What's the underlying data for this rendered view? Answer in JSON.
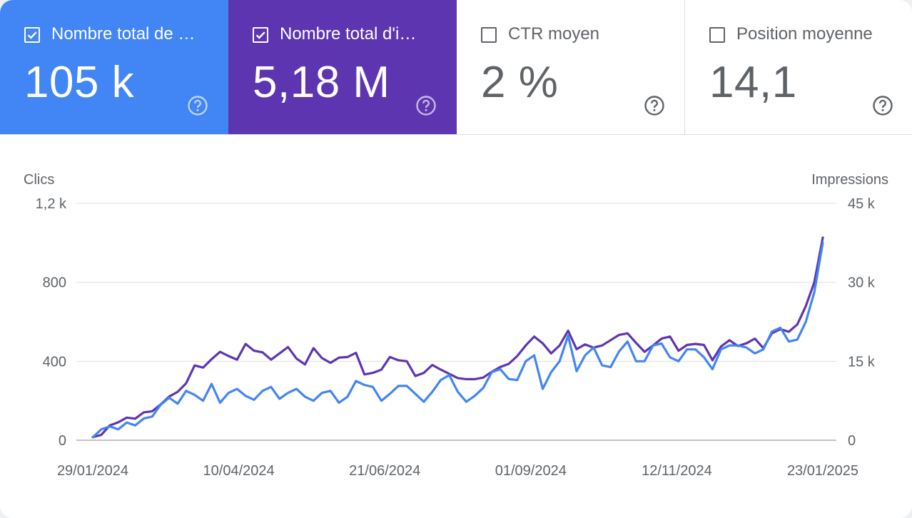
{
  "colors": {
    "clicks": "#4285f4",
    "impressions": "#5e35b1",
    "tile_clicks_bg": "#4285f4",
    "tile_impressions_bg": "#5e35b1"
  },
  "metrics": [
    {
      "label": "Nombre total de …",
      "value": "105 k",
      "checked": true,
      "icon": "help-circle-icon"
    },
    {
      "label": "Nombre total d'i…",
      "value": "5,18 M",
      "checked": true,
      "icon": "help-circle-icon"
    },
    {
      "label": "CTR moyen",
      "value": "2 %",
      "checked": false,
      "icon": "help-circle-icon"
    },
    {
      "label": "Position moyenne",
      "value": "14,1",
      "checked": false,
      "icon": "help-circle-icon"
    }
  ],
  "chart_data": {
    "type": "line",
    "left_axis": {
      "title": "Clics",
      "ticks": [
        "0",
        "400",
        "800",
        "1,2 k"
      ],
      "range": [
        0,
        1200
      ]
    },
    "right_axis": {
      "title": "Impressions",
      "ticks": [
        "0",
        "15 k",
        "30 k",
        "45 k"
      ],
      "range": [
        0,
        45000
      ]
    },
    "x_ticks": [
      "29/01/2024",
      "10/04/2024",
      "21/06/2024",
      "01/09/2024",
      "12/11/2024",
      "23/01/2025"
    ],
    "x_start": "29/01/2024",
    "x_end": "28/01/2025",
    "series": [
      {
        "name": "Nombre total de clics",
        "axis": "left",
        "values": [
          15,
          55,
          70,
          55,
          90,
          75,
          110,
          120,
          180,
          215,
          185,
          250,
          230,
          200,
          285,
          190,
          240,
          260,
          225,
          205,
          250,
          270,
          210,
          240,
          260,
          220,
          200,
          240,
          250,
          190,
          220,
          300,
          280,
          270,
          200,
          235,
          275,
          275,
          235,
          195,
          245,
          305,
          330,
          245,
          195,
          225,
          265,
          345,
          360,
          310,
          305,
          400,
          430,
          260,
          345,
          400,
          530,
          350,
          430,
          470,
          380,
          370,
          450,
          500,
          400,
          400,
          480,
          490,
          420,
          400,
          460,
          460,
          420,
          360,
          460,
          480,
          480,
          470,
          440,
          460,
          550,
          570,
          500,
          510,
          600,
          750,
          1000
        ]
      },
      {
        "name": "Nombre total d'impressions",
        "axis": "right",
        "values": [
          600,
          1000,
          2800,
          3400,
          4300,
          4100,
          5300,
          5500,
          6800,
          8300,
          9200,
          10800,
          14200,
          13800,
          15400,
          16800,
          16000,
          15300,
          18300,
          17000,
          16700,
          15300,
          16500,
          17700,
          15500,
          14400,
          17500,
          15600,
          14700,
          15700,
          15800,
          16600,
          12500,
          12800,
          13400,
          15800,
          15200,
          15000,
          12200,
          12800,
          14300,
          13400,
          12600,
          11800,
          11600,
          11600,
          11900,
          13000,
          13900,
          14500,
          16000,
          18000,
          19700,
          18400,
          16500,
          18000,
          20800,
          17300,
          18200,
          17600,
          18000,
          19000,
          20000,
          20300,
          18500,
          16800,
          18000,
          19300,
          19700,
          17000,
          18100,
          18300,
          18100,
          15200,
          17800,
          19000,
          17900,
          18400,
          19300,
          17500,
          20300,
          21100,
          20600,
          22000,
          25500,
          30000,
          38500
        ]
      }
    ]
  }
}
